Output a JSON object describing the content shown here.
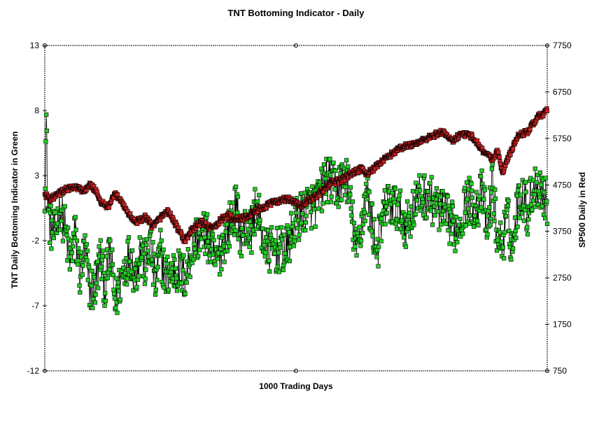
{
  "chart_data": {
    "type": "line",
    "title": "TNT Bottoming Indicator - Daily",
    "xlabel": "1000 Trading Days",
    "ylabel_left": "TNT Daily Bottoming Indicator in Green",
    "ylabel_right": "SP500 Daily in Red",
    "x_count": 1000,
    "y_left": {
      "min": -12,
      "max": 13,
      "ticks": [
        13,
        8,
        3,
        -2,
        -7,
        -12
      ]
    },
    "y_right": {
      "min": 750,
      "max": 7750,
      "ticks": [
        7750,
        6750,
        5750,
        4750,
        3750,
        2750,
        1750,
        750
      ]
    },
    "grid": false,
    "series": [
      {
        "name": "TNT Daily Bottoming Indicator",
        "axis": "left",
        "color": "#22cc22",
        "marker": "square",
        "anchors": [
          [
            0,
            2
          ],
          [
            3,
            7.2
          ],
          [
            6,
            0.5
          ],
          [
            12,
            -1
          ],
          [
            20,
            -1.6
          ],
          [
            30,
            0.8
          ],
          [
            40,
            -1
          ],
          [
            50,
            -3.6
          ],
          [
            60,
            -1.4
          ],
          [
            70,
            -4.6
          ],
          [
            80,
            -2.8
          ],
          [
            90,
            -5.8
          ],
          [
            100,
            -5.6
          ],
          [
            110,
            -3.2
          ],
          [
            120,
            -5.5
          ],
          [
            130,
            -2.8
          ],
          [
            140,
            -6.8
          ],
          [
            150,
            -5.2
          ],
          [
            160,
            -3.8
          ],
          [
            170,
            -3
          ],
          [
            180,
            -4.8
          ],
          [
            190,
            -2.5
          ],
          [
            200,
            -4
          ],
          [
            210,
            -2.2
          ],
          [
            220,
            -5.4
          ],
          [
            230,
            -2.8
          ],
          [
            240,
            -4.8
          ],
          [
            260,
            -4.2
          ],
          [
            280,
            -4.8
          ],
          [
            290,
            -3
          ],
          [
            300,
            -1.8
          ],
          [
            320,
            -1.4
          ],
          [
            340,
            -3.8
          ],
          [
            360,
            -1.5
          ],
          [
            380,
            0.5
          ],
          [
            390,
            -1.5
          ],
          [
            400,
            -1
          ],
          [
            410,
            -1.4
          ],
          [
            420,
            0.8
          ],
          [
            440,
            -2.8
          ],
          [
            460,
            -2.7
          ],
          [
            480,
            -2.8
          ],
          [
            500,
            -0.5
          ],
          [
            520,
            0.6
          ],
          [
            540,
            0.8
          ],
          [
            560,
            2.8
          ],
          [
            580,
            2
          ],
          [
            600,
            3
          ],
          [
            620,
            -3
          ],
          [
            640,
            1.8
          ],
          [
            660,
            -2.8
          ],
          [
            680,
            1
          ],
          [
            700,
            0.5
          ],
          [
            720,
            -0.8
          ],
          [
            740,
            1.2
          ],
          [
            760,
            1.5
          ],
          [
            780,
            0.6
          ],
          [
            800,
            -0.3
          ],
          [
            820,
            -1.2
          ],
          [
            840,
            1.2
          ],
          [
            860,
            0.6
          ],
          [
            870,
            1.8
          ],
          [
            880,
            -1.4
          ],
          [
            890,
            2.4
          ],
          [
            900,
            -1.8
          ],
          [
            910,
            -2.2
          ],
          [
            920,
            -0.2
          ],
          [
            930,
            -2.6
          ],
          [
            940,
            0.8
          ],
          [
            950,
            1.8
          ],
          [
            960,
            0.2
          ],
          [
            970,
            2
          ],
          [
            980,
            2.4
          ],
          [
            990,
            1.8
          ],
          [
            999,
            0.8
          ]
        ],
        "amplitude": 1.8
      },
      {
        "name": "SP500 Daily",
        "axis": "right",
        "color": "#cc2222",
        "marker": "square",
        "anchors": [
          [
            0,
            4550
          ],
          [
            10,
            4450
          ],
          [
            20,
            4500
          ],
          [
            40,
            4650
          ],
          [
            60,
            4700
          ],
          [
            80,
            4620
          ],
          [
            90,
            4750
          ],
          [
            100,
            4650
          ],
          [
            110,
            4400
          ],
          [
            125,
            4250
          ],
          [
            140,
            4550
          ],
          [
            150,
            4450
          ],
          [
            165,
            4150
          ],
          [
            180,
            3950
          ],
          [
            200,
            4050
          ],
          [
            215,
            3850
          ],
          [
            230,
            4050
          ],
          [
            245,
            4200
          ],
          [
            260,
            3900
          ],
          [
            275,
            3600
          ],
          [
            280,
            3550
          ],
          [
            290,
            3750
          ],
          [
            310,
            3950
          ],
          [
            320,
            3900
          ],
          [
            335,
            3800
          ],
          [
            350,
            4000
          ],
          [
            365,
            4100
          ],
          [
            380,
            4000
          ],
          [
            400,
            4050
          ],
          [
            420,
            4200
          ],
          [
            440,
            4300
          ],
          [
            460,
            4400
          ],
          [
            480,
            4450
          ],
          [
            490,
            4420
          ],
          [
            500,
            4350
          ],
          [
            510,
            4300
          ],
          [
            530,
            4450
          ],
          [
            550,
            4600
          ],
          [
            570,
            4800
          ],
          [
            590,
            4850
          ],
          [
            610,
            5000
          ],
          [
            630,
            5100
          ],
          [
            640,
            5000
          ],
          [
            650,
            5050
          ],
          [
            670,
            5250
          ],
          [
            700,
            5500
          ],
          [
            720,
            5600
          ],
          [
            740,
            5650
          ],
          [
            760,
            5750
          ],
          [
            790,
            5900
          ],
          [
            810,
            5700
          ],
          [
            830,
            5850
          ],
          [
            850,
            5800
          ],
          [
            870,
            5500
          ],
          [
            890,
            5300
          ],
          [
            900,
            5500
          ],
          [
            910,
            5000
          ],
          [
            920,
            5300
          ],
          [
            930,
            5550
          ],
          [
            940,
            5800
          ],
          [
            960,
            5900
          ],
          [
            980,
            6200
          ],
          [
            999,
            6350
          ]
        ],
        "amplitude": 60
      }
    ]
  }
}
